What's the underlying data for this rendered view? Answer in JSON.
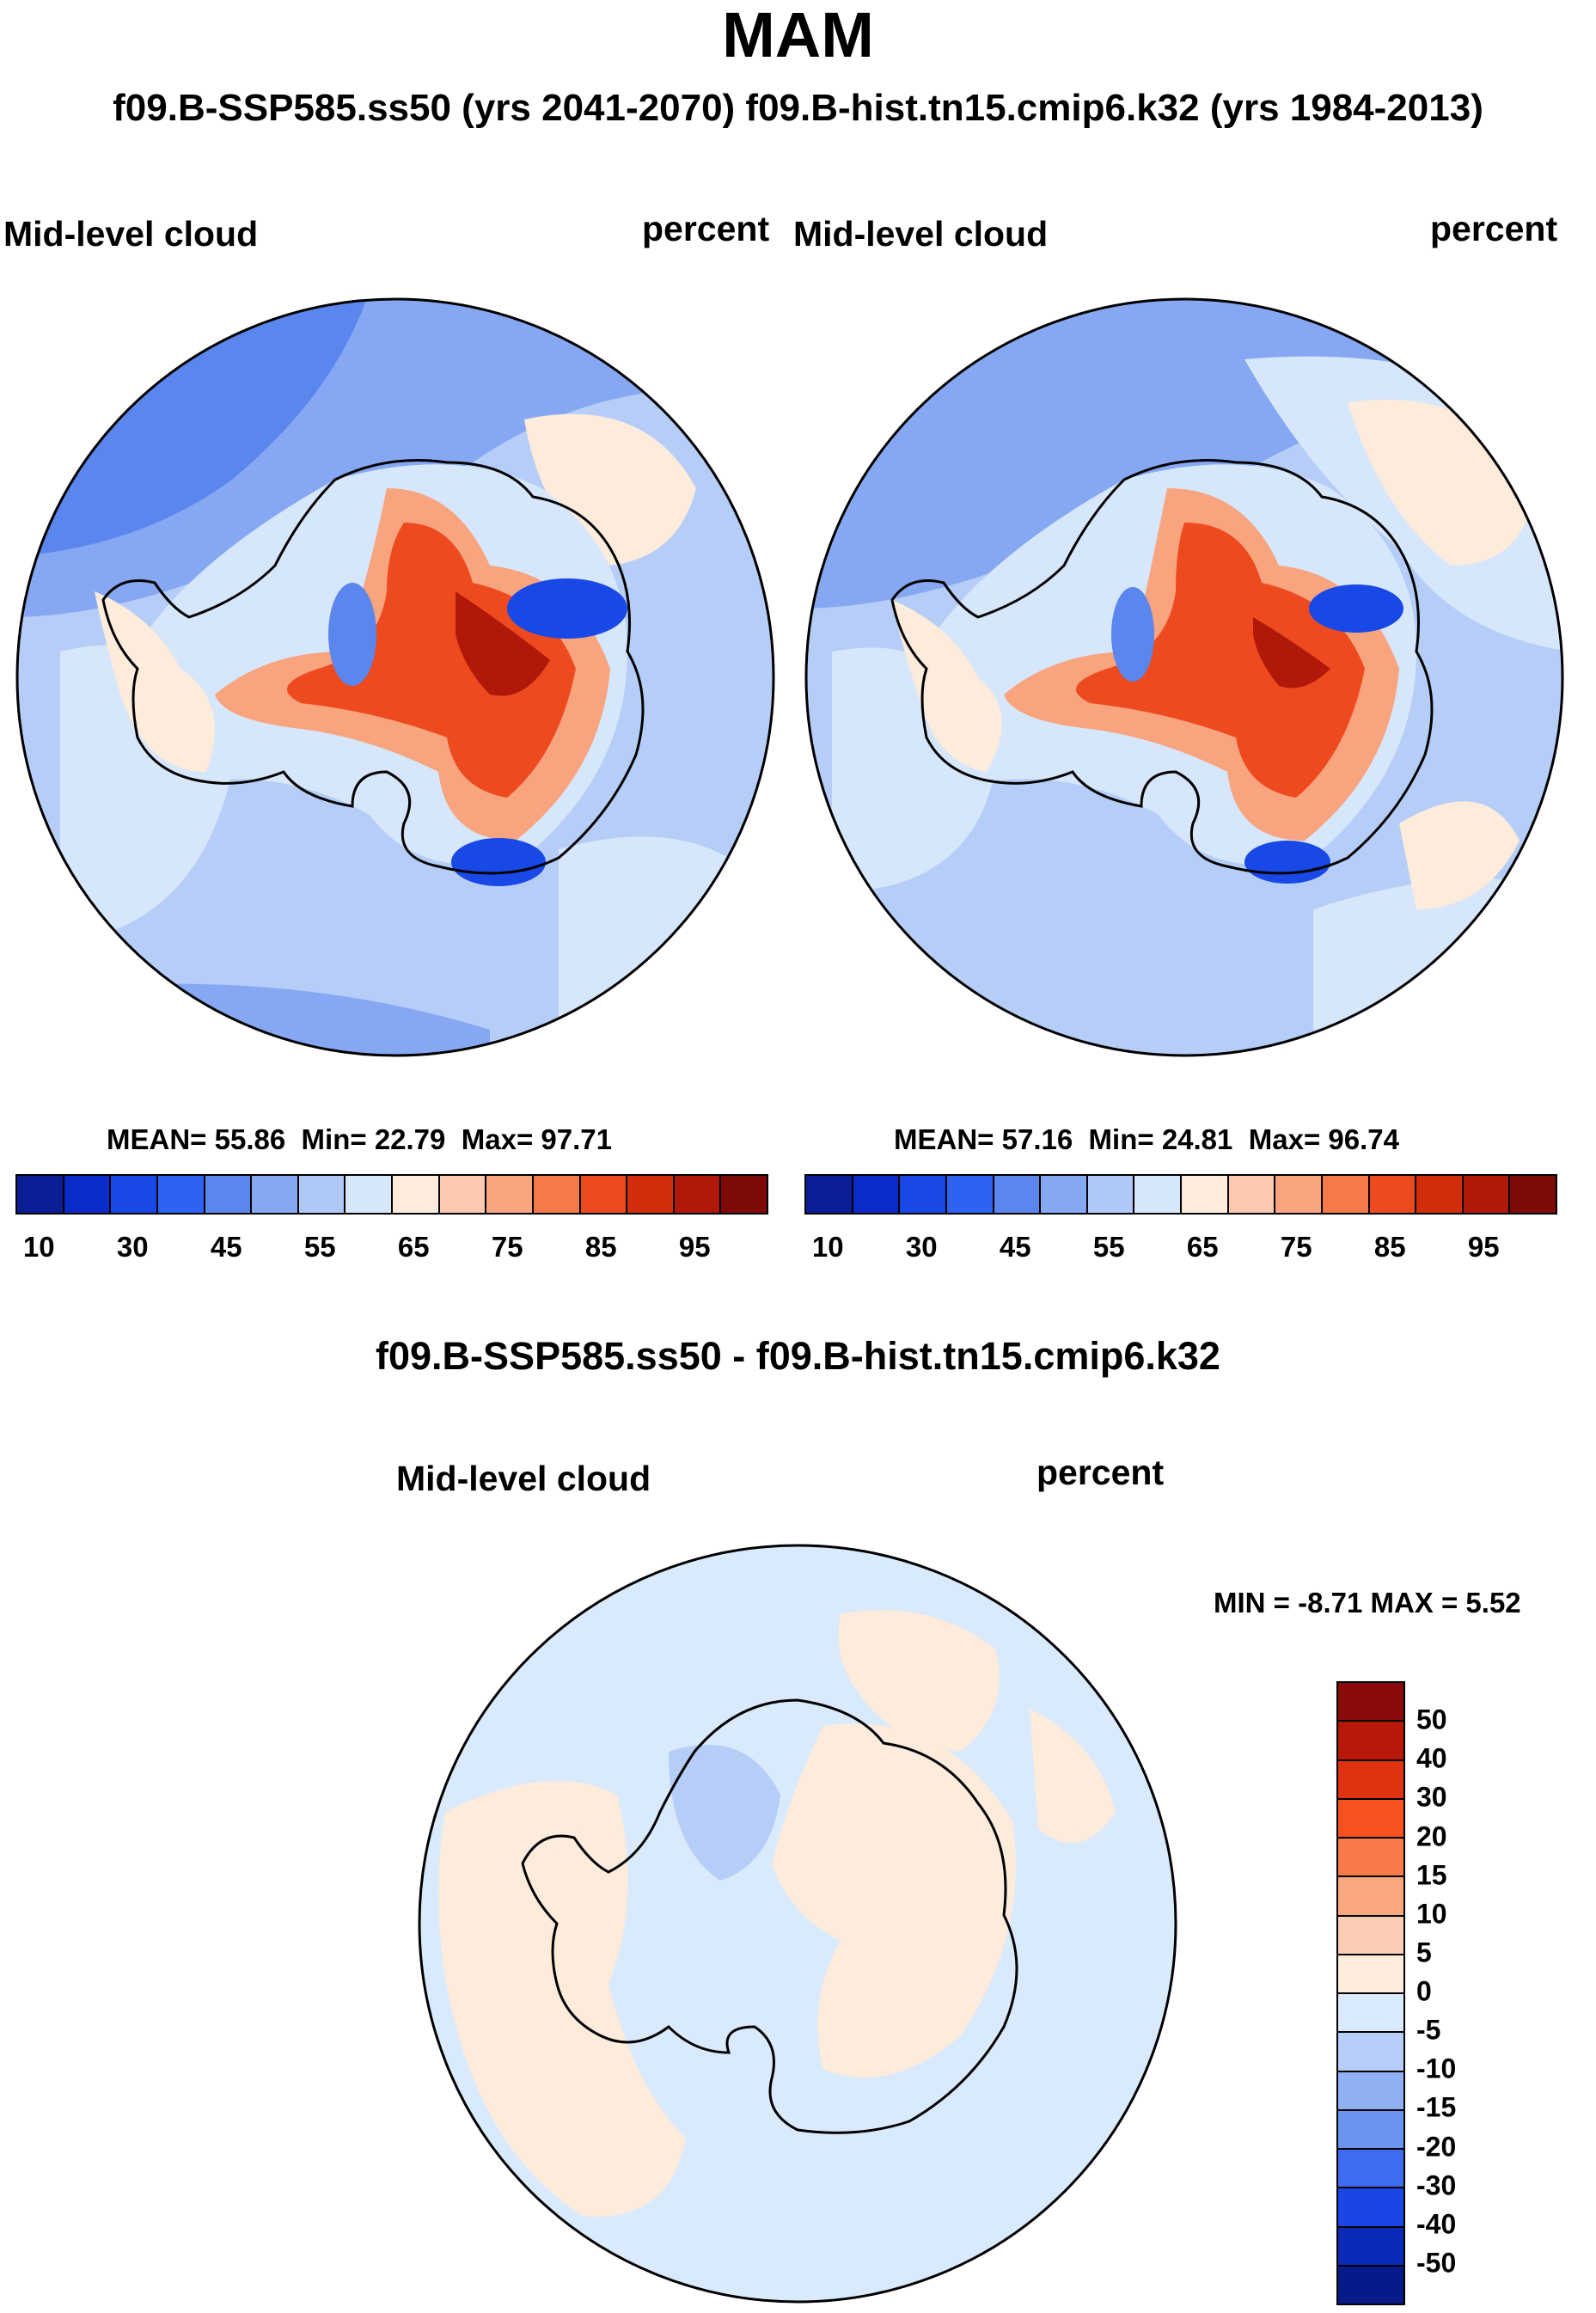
{
  "title": "MAM",
  "subtitle": "f09.B-SSP585.ss50 (yrs 2041-2070)  f09.B-hist.tn15.cmip6.k32 (yrs 1984-2013)",
  "panels": [
    {
      "case": "f09.B-SSP585.ss50 (yrs 2041-2070)",
      "left_label": "Mid-level cloud",
      "right_label": "percent",
      "stats": {
        "mean_label": "MEAN=",
        "mean": "55.86",
        "min_label": "Min=",
        "min": "22.79",
        "max_label": "Max=",
        "max": "97.71"
      }
    },
    {
      "case": "f09.B-hist.tn15.cmip6.k32 (yrs 1984-2013)",
      "left_label": "Mid-level cloud",
      "right_label": "percent",
      "stats": {
        "mean_label": "MEAN=",
        "mean": "57.16",
        "min_label": "Min=",
        "min": "24.81",
        "max_label": "Max=",
        "max": "96.74"
      }
    }
  ],
  "colorbar_abs": {
    "colors": [
      "#0a1f96",
      "#0b2cc8",
      "#1848e6",
      "#2e62f0",
      "#5a86ee",
      "#86a8f2",
      "#b0c8f6",
      "#d6e6fb",
      "#fdebdc",
      "#fbc9b0",
      "#f8a47e",
      "#f47a4a",
      "#ee4a1f",
      "#d22d0d",
      "#b0190a",
      "#7e0a08"
    ],
    "ticks": [
      "10",
      "30",
      "45",
      "55",
      "65",
      "75",
      "85",
      "95"
    ]
  },
  "diff": {
    "title": "f09.B-SSP585.ss50 - f09.B-hist.tn15.cmip6.k32",
    "left_label": "Mid-level cloud",
    "right_label": "percent",
    "minmax_text": "MIN =  -8.71 MAX =   5.52",
    "colorbar": {
      "colors": [
        "#8b0a0a",
        "#b8180a",
        "#e03312",
        "#f8521f",
        "#f8794a",
        "#f9a77f",
        "#fbcdb4",
        "#fdebdc",
        "#d9eafc",
        "#b5cdf7",
        "#8fb0f3",
        "#6b93f0",
        "#3f6cf0",
        "#1a46e6",
        "#0b2ab8",
        "#061a8a"
      ],
      "ticks": [
        "50",
        "40",
        "30",
        "20",
        "15",
        "10",
        "5",
        "0",
        "-5",
        "-10",
        "-15",
        "-20",
        "-30",
        "-40",
        "-50"
      ]
    }
  },
  "map_regions": {
    "ocean_abs": "#b5cdf7",
    "ocean_abs_light": "#d6e6fb",
    "ocean_abs_dark": "#86a8f2",
    "ocean_abs_darker": "#5a86ee",
    "peach": "#fdebdc",
    "inner_red": "#ee4a1f",
    "mid_red": "#f8a47e",
    "core_red": "#b0190a",
    "blue_spot": "#1848e6",
    "diff_ocean": "#d9eafc",
    "diff_pos": "#fdebdc",
    "diff_neg": "#b5cdf7",
    "coast": "#000000"
  }
}
